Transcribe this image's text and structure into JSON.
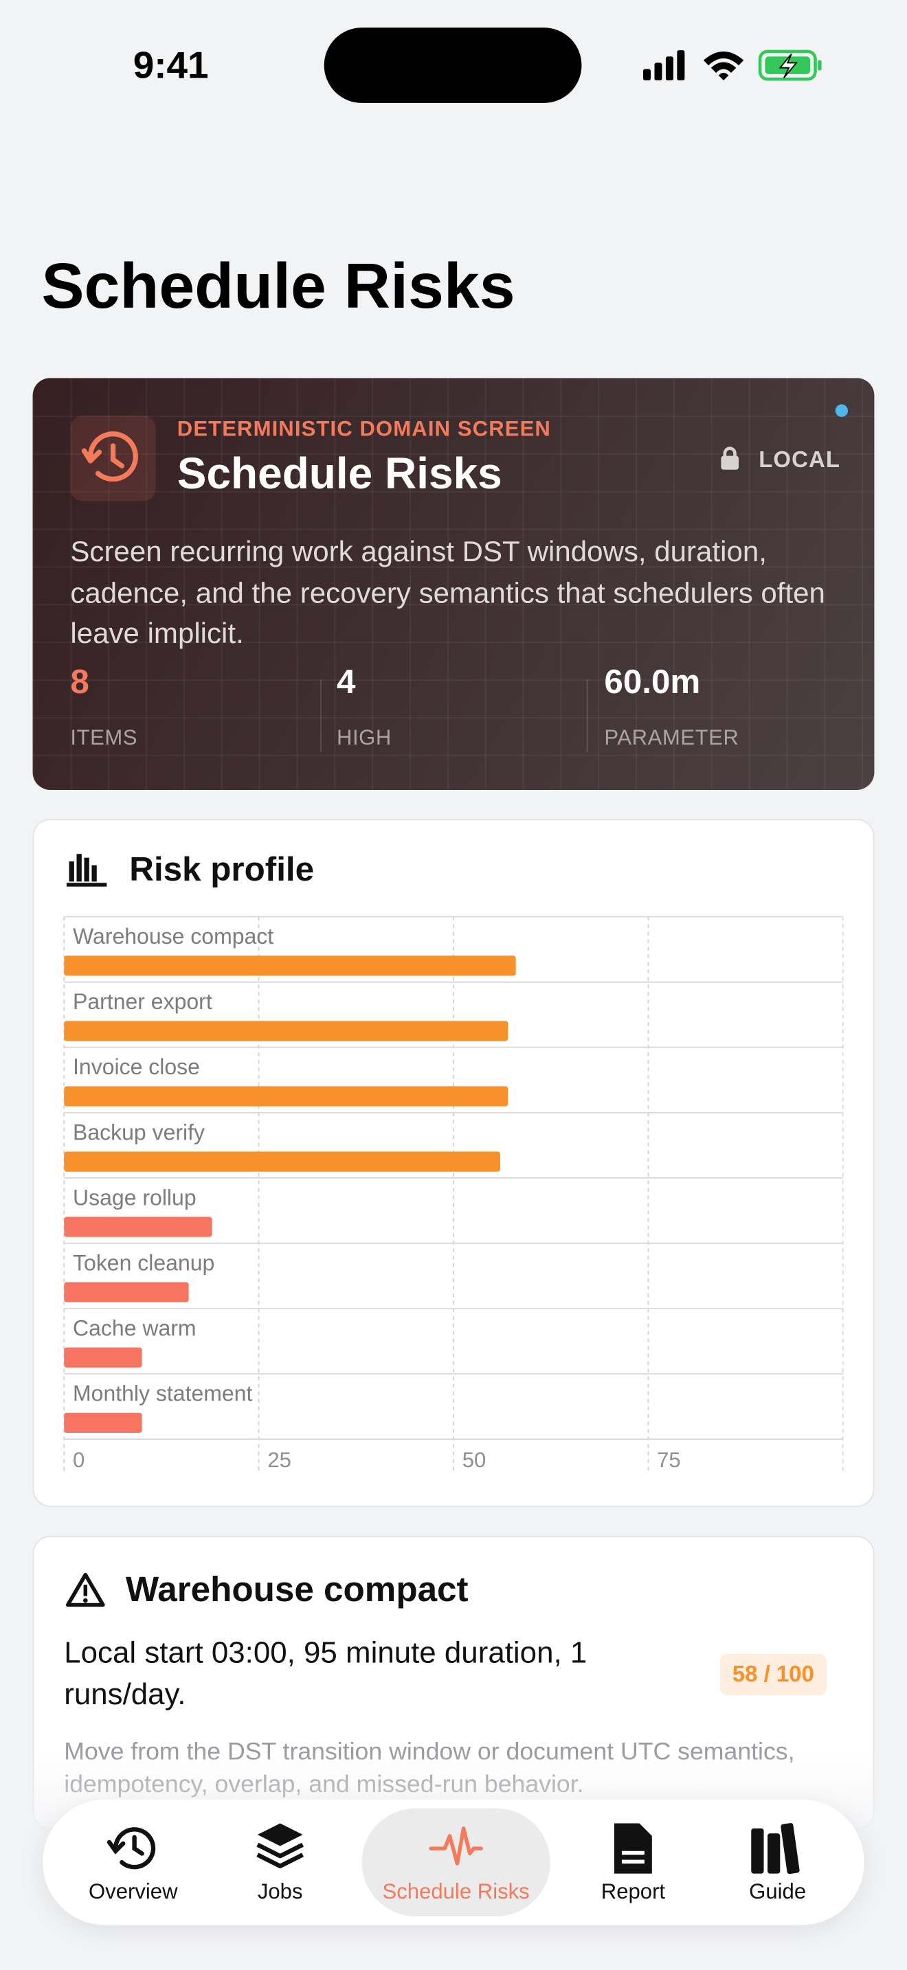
{
  "status_bar": {
    "time": "9:41"
  },
  "header": {
    "title": "Schedule Risks"
  },
  "hero": {
    "eyebrow": "DETERMINISTIC DOMAIN SCREEN",
    "title": "Schedule Risks",
    "badge": "LOCAL",
    "description": "Screen recurring work against DST windows, duration, cadence, and the recovery semantics that schedulers often leave implicit.",
    "stats": [
      {
        "value": "8",
        "label": "ITEMS"
      },
      {
        "value": "4",
        "label": "HIGH"
      },
      {
        "value": "60.0m",
        "label": "PARAMETER"
      }
    ]
  },
  "chart_data": {
    "type": "bar",
    "orientation": "horizontal",
    "title": "Risk profile",
    "categories": [
      "Warehouse compact",
      "Partner export",
      "Invoice close",
      "Backup verify",
      "Usage rollup",
      "Token cleanup",
      "Cache warm",
      "Monthly statement"
    ],
    "values": [
      58,
      57,
      57,
      56,
      19,
      16,
      10,
      10
    ],
    "colors": [
      "#f7922a",
      "#f7922a",
      "#f7922a",
      "#f7922a",
      "#f77560",
      "#f77560",
      "#f77560",
      "#f77560"
    ],
    "xlim": [
      0,
      100
    ],
    "xticks": [
      0,
      25,
      50,
      75
    ],
    "grid": true
  },
  "detail": {
    "title": "Warehouse compact",
    "summary": "Local start 03:00, 95 minute duration, 1 runs/day.",
    "score": "58 / 100",
    "note": "Move from the DST transition window or document UTC semantics, idempotency, overlap, and missed-run behavior."
  },
  "tab_bar": {
    "tabs": [
      "Overview",
      "Jobs",
      "Schedule Risks",
      "Report",
      "Guide"
    ],
    "active": 2
  }
}
